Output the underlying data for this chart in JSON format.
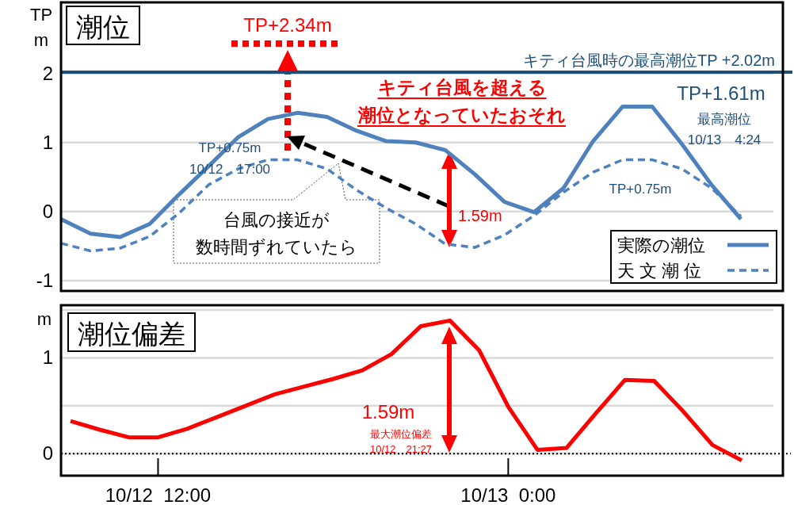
{
  "chart_data": [
    {
      "type": "line",
      "title": "潮位",
      "ylabel": "TP\nm",
      "categories": [
        null,
        null,
        null,
        null,
        null,
        null,
        null,
        null,
        null,
        null,
        null,
        null,
        null,
        null,
        null,
        null,
        null,
        null,
        null,
        null,
        null,
        null,
        null,
        null
      ],
      "ylim": [
        -1.15,
        3.03
      ],
      "yticks": [
        -1,
        0,
        1,
        2
      ],
      "grid": "y",
      "legend": "bottom right",
      "series": [
        {
          "name": "実際の潮位",
          "color": "#4f81bd",
          "line_style": "solid",
          "values": [
            -0.11,
            -0.32,
            -0.37,
            -0.18,
            0.25,
            0.66,
            1.08,
            1.34,
            1.43,
            1.37,
            1.17,
            1.02,
            1.0,
            0.89,
            0.54,
            0.14,
            -0.01,
            0.34,
            1.02,
            1.52,
            1.52,
            0.98,
            0.39,
            -0.11
          ]
        },
        {
          "name": "天 文 潮 位",
          "color": "#4f81bd",
          "line_style": "dashed",
          "values": [
            -0.46,
            -0.57,
            -0.53,
            -0.36,
            -0.02,
            0.39,
            0.62,
            0.75,
            0.75,
            0.62,
            0.31,
            0.05,
            -0.18,
            -0.47,
            -0.52,
            -0.34,
            -0.06,
            0.28,
            0.57,
            0.75,
            0.75,
            0.62,
            0.34,
            -0.07
          ]
        }
      ],
      "ref_lines": [
        {
          "axis": "y",
          "value": 2.02,
          "label": "キティ台風時の最高潮位TP +2.02m",
          "color": "#1f4e79",
          "line_style": "solid"
        }
      ],
      "annotations": [
        "TP+2.34m",
        "キティ台風を超える",
        "潮位となっていたおそれ",
        "TP+1.61m",
        "最高潮位",
        "10/13　4:24",
        "TP+0.75m",
        "10/12　17:00",
        "TP+0.75m",
        "台風の接近が",
        "数時間ずれていたら",
        "1.59m"
      ]
    },
    {
      "type": "line",
      "title": "潮位偏差",
      "ylabel": "m",
      "categories": [
        null,
        null,
        null,
        "10/12  12:00",
        null,
        null,
        null,
        null,
        null,
        null,
        null,
        null,
        null,
        null,
        null,
        "10/13  0:00",
        null,
        null,
        null,
        null,
        null,
        null,
        null,
        null
      ],
      "ylim": [
        -0.23,
        1.55
      ],
      "yticks": [
        0,
        {
          "value": 0.5,
          "label": null
        },
        1,
        {
          "value": 1.5,
          "label": null
        }
      ],
      "grid": "y",
      "series": [
        {
          "color": "#ff0000",
          "values": [
            0.34,
            0.25,
            0.17,
            0.17,
            0.26,
            0.38,
            0.5,
            0.62,
            0.7,
            0.78,
            0.87,
            1.04,
            1.33,
            1.39,
            1.08,
            0.49,
            0.04,
            0.06,
            0.42,
            0.77,
            0.76,
            0.44,
            0.09,
            -0.07
          ]
        }
      ],
      "ref_lines": [
        {
          "axis": "y",
          "value": 0,
          "color": "#000000",
          "line_style": "dotted"
        }
      ],
      "annotations": [
        "1.59m",
        "最大潮位偏差",
        "10/12　21:27"
      ]
    }
  ]
}
